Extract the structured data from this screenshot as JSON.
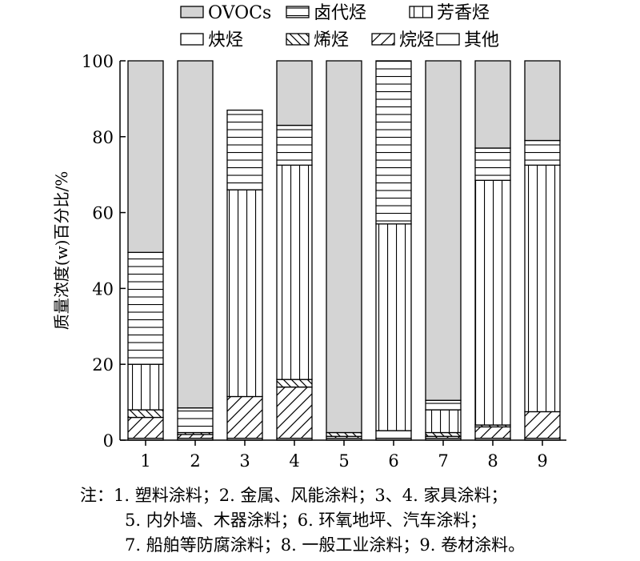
{
  "chart_data": {
    "type": "bar",
    "stacked": true,
    "percent": true,
    "ylabel": "质量浓度(w)百分比/%",
    "xlabel": "",
    "ylim": [
      0,
      100
    ],
    "yticks": [
      0,
      20,
      40,
      60,
      80,
      100
    ],
    "grid": false,
    "legend_position": "top",
    "categories": [
      "1",
      "2",
      "3",
      "4",
      "5",
      "6",
      "7",
      "8",
      "9"
    ],
    "series": [
      {
        "name": "其他",
        "pattern": "none",
        "values": [
          0.5,
          0.5,
          0.5,
          0.5,
          0.5,
          0.5,
          0.5,
          0.5,
          0.5
        ]
      },
      {
        "name": "烷烃",
        "pattern": "diag-up",
        "values": [
          5.5,
          1.0,
          11.0,
          13.5,
          0.5,
          0.0,
          0.5,
          3.0,
          7.0
        ]
      },
      {
        "name": "烯烃",
        "pattern": "diag-down",
        "values": [
          2.0,
          0.5,
          0.0,
          2.0,
          1.0,
          0.0,
          1.0,
          0.5,
          0.0
        ]
      },
      {
        "name": "炔烃",
        "pattern": "none",
        "values": [
          0.0,
          0.0,
          0.0,
          0.0,
          0.0,
          2.0,
          0.0,
          0.0,
          0.0
        ]
      },
      {
        "name": "芳香烃",
        "pattern": "vertical",
        "values": [
          12.0,
          0.0,
          54.5,
          56.5,
          0.0,
          54.5,
          6.0,
          64.5,
          65.0
        ]
      },
      {
        "name": "卤代烃",
        "pattern": "horizontal",
        "values": [
          29.5,
          6.5,
          21.0,
          10.5,
          0.0,
          43.0,
          2.5,
          8.5,
          6.5
        ]
      },
      {
        "name": "OVOCs",
        "pattern": "gray",
        "values": [
          50.5,
          91.5,
          0.0,
          17.0,
          98.0,
          0.0,
          89.5,
          23.0,
          21.0
        ]
      }
    ],
    "bar_9_segments_note": ""
  },
  "legend_order": [
    "OVOCs",
    "卤代烃",
    "芳香烃",
    "炔烃",
    "烯烃",
    "烷烃",
    "其他"
  ],
  "notes": {
    "line1": "注：1. 塑料涂料；2. 金属、风能涂料；3、4. 家具涂料；",
    "line2": "5. 内外墙、木器涂料；6. 环氧地坪、汽车涂料；",
    "line3": "7. 船舶等防腐涂料；8. 一般工业涂料；9. 卷材涂料。"
  },
  "colors": {
    "ovocs_fill": "#d4d4d4",
    "stroke": "#000000",
    "background": "#ffffff"
  }
}
